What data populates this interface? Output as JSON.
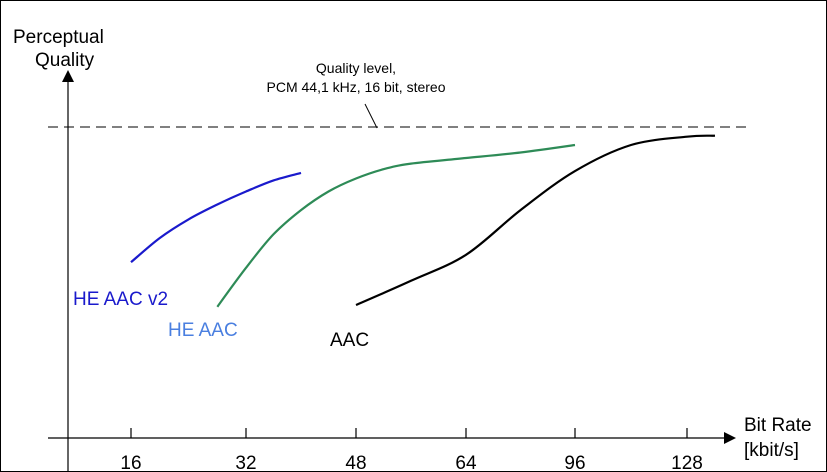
{
  "chart_data": {
    "type": "line",
    "ylabel_line1": "Perceptual",
    "ylabel_line2": "Quality",
    "xlabel_line1": "Bit Rate",
    "xlabel_line2": "[kbit/s]",
    "xticks": [
      "16",
      "32",
      "48",
      "64",
      "96",
      "128"
    ],
    "reference": {
      "label_line1": "Quality level,",
      "label_line2": "PCM 44,1 kHz, 16 bit, stereo"
    },
    "series": [
      {
        "name": "HE AAC v2",
        "color": "#1a1acc",
        "label_color": "#1a1acc",
        "x": [
          16,
          20,
          24,
          28,
          32,
          36,
          40
        ],
        "y": [
          0.3,
          0.43,
          0.53,
          0.61,
          0.68,
          0.74,
          0.78
        ]
      },
      {
        "name": "HE AAC",
        "color": "#2e8b57",
        "label_color": "#4a7fe0",
        "x": [
          28,
          32,
          36,
          40,
          44,
          48,
          52,
          56,
          64,
          80,
          96
        ],
        "y": [
          0.06,
          0.27,
          0.45,
          0.58,
          0.68,
          0.75,
          0.8,
          0.83,
          0.86,
          0.89,
          0.93
        ]
      },
      {
        "name": "AAC",
        "color": "#000000",
        "label_color": "#000000",
        "x": [
          48,
          56,
          64,
          80,
          96,
          112,
          128,
          136
        ],
        "y": [
          0.07,
          0.2,
          0.34,
          0.58,
          0.79,
          0.93,
          0.975,
          0.98
        ]
      }
    ]
  }
}
